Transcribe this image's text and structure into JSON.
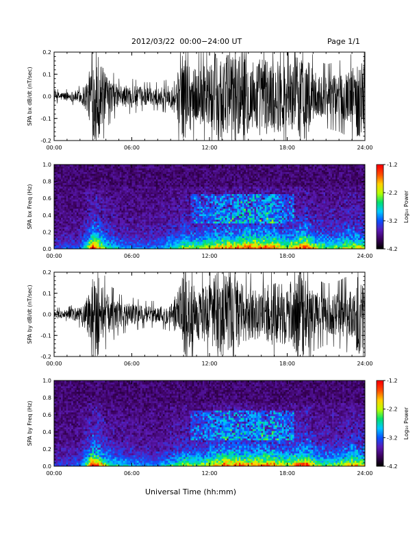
{
  "header": {
    "title": "2012/03/22  00:00−24:00 UT",
    "page": "Page 1/1"
  },
  "footer": {
    "xlabel": "Universal Time (hh:mm)"
  },
  "colors": {
    "waveform": "#000000",
    "background": "#ffffff",
    "colormap": [
      "#000000",
      "#3a005a",
      "#5a1ab4",
      "#0a50ff",
      "#00c8ff",
      "#00e070",
      "#b8ff00",
      "#ffd000",
      "#ff5000",
      "#ff0000"
    ]
  },
  "chart_data": [
    {
      "type": "line",
      "ylabel": "SPA bx dB/dt (nT/sec)",
      "x_ticks": [
        "00:00",
        "06:00",
        "12:00",
        "18:00",
        "24:00"
      ],
      "xlim_hours": [
        0,
        24
      ],
      "ylim": [
        -0.2,
        0.2
      ],
      "y_ticks": [
        "-0.2",
        "-0.1",
        "0.0",
        "0.1",
        "0.2"
      ],
      "series": [
        {
          "hours": [
            0,
            1,
            2,
            2.6,
            3,
            3.4,
            4,
            5,
            6,
            7,
            8,
            9,
            9.6,
            10,
            11,
            12,
            12.5,
            13,
            13.5,
            14,
            15,
            16,
            17,
            18,
            19,
            19.5,
            20,
            21,
            22,
            23,
            23.5,
            24
          ],
          "envelope": [
            0.02,
            0.02,
            0.03,
            0.08,
            0.2,
            0.2,
            0.09,
            0.05,
            0.05,
            0.04,
            0.04,
            0.05,
            0.12,
            0.2,
            0.12,
            0.15,
            0.2,
            0.2,
            0.2,
            0.2,
            0.17,
            0.18,
            0.17,
            0.15,
            0.2,
            0.2,
            0.11,
            0.09,
            0.1,
            0.12,
            0.2,
            0.15
          ]
        }
      ]
    },
    {
      "type": "heatmap",
      "ylabel": "SPA bx Freq (Hz)",
      "x_ticks": [
        "00:00",
        "06:00",
        "12:00",
        "18:00",
        "24:00"
      ],
      "xlim_hours": [
        0,
        24
      ],
      "ylim": [
        0.0,
        1.0
      ],
      "y_ticks": [
        "0.0",
        "0.2",
        "0.4",
        "0.6",
        "0.8",
        "1.0"
      ],
      "colorbar": {
        "label": "Log₁₀ Power",
        "ticks": [
          "-1.2",
          "-2.2",
          "-3.2",
          "-4.2"
        ],
        "range": [
          -4.2,
          -1.2
        ]
      },
      "activity_hours": [
        0,
        2,
        2.6,
        3,
        3.4,
        4,
        5,
        6,
        8,
        9.6,
        10,
        11,
        12,
        13,
        14,
        15,
        16,
        17,
        18,
        19,
        19.5,
        20,
        21,
        22,
        23,
        24
      ],
      "activity_level": [
        0.15,
        0.2,
        0.5,
        0.85,
        0.75,
        0.45,
        0.3,
        0.25,
        0.25,
        0.45,
        0.55,
        0.5,
        0.6,
        0.7,
        0.75,
        0.8,
        0.8,
        0.75,
        0.55,
        0.8,
        0.85,
        0.6,
        0.45,
        0.5,
        0.65,
        0.55
      ]
    },
    {
      "type": "line",
      "ylabel": "SPA by dB/dt (nT/sec)",
      "x_ticks": [
        "00:00",
        "06:00",
        "12:00",
        "18:00",
        "24:00"
      ],
      "xlim_hours": [
        0,
        24
      ],
      "ylim": [
        -0.2,
        0.2
      ],
      "y_ticks": [
        "-0.2",
        "-0.1",
        "0.0",
        "0.1",
        "0.2"
      ],
      "series": [
        {
          "hours": [
            0,
            1,
            2,
            2.6,
            3,
            3.4,
            4,
            5,
            6,
            7,
            8,
            9,
            9.6,
            10,
            11,
            12,
            12.5,
            13,
            13.5,
            14,
            15,
            16,
            17,
            18,
            19,
            19.5,
            20,
            21,
            22,
            23,
            23.5,
            24
          ],
          "envelope": [
            0.02,
            0.02,
            0.04,
            0.1,
            0.2,
            0.2,
            0.1,
            0.06,
            0.05,
            0.04,
            0.04,
            0.05,
            0.12,
            0.2,
            0.12,
            0.14,
            0.2,
            0.2,
            0.2,
            0.17,
            0.12,
            0.13,
            0.15,
            0.14,
            0.2,
            0.2,
            0.11,
            0.09,
            0.1,
            0.12,
            0.2,
            0.15
          ]
        }
      ]
    },
    {
      "type": "heatmap",
      "ylabel": "SPA by Freq (Hz)",
      "x_ticks": [
        "00:00",
        "06:00",
        "12:00",
        "18:00",
        "24:00"
      ],
      "xlim_hours": [
        0,
        24
      ],
      "ylim": [
        0.0,
        1.0
      ],
      "y_ticks": [
        "0.0",
        "0.2",
        "0.4",
        "0.6",
        "0.8",
        "1.0"
      ],
      "colorbar": {
        "label": "Log₁₀ Power",
        "ticks": [
          "-1.2",
          "-2.2",
          "-3.2",
          "-4.2"
        ],
        "range": [
          -4.2,
          -1.2
        ]
      },
      "activity_hours": [
        0,
        2,
        2.6,
        3,
        3.4,
        4,
        5,
        6,
        8,
        9.6,
        10,
        11,
        12,
        13,
        14,
        15,
        16,
        17,
        18,
        19,
        19.5,
        20,
        21,
        22,
        23,
        24
      ],
      "activity_level": [
        0.15,
        0.2,
        0.55,
        0.9,
        0.8,
        0.5,
        0.35,
        0.3,
        0.25,
        0.45,
        0.55,
        0.5,
        0.6,
        0.75,
        0.75,
        0.7,
        0.75,
        0.75,
        0.55,
        0.8,
        0.85,
        0.6,
        0.45,
        0.5,
        0.7,
        0.6
      ]
    }
  ]
}
